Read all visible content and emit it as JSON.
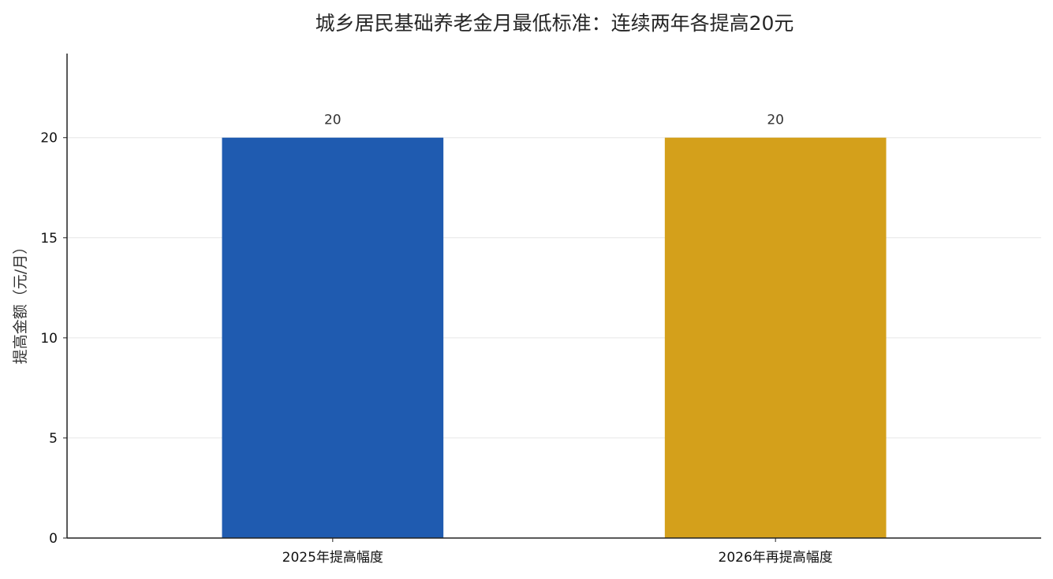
{
  "chart_data": {
    "type": "bar",
    "title": "城乡居民基础养老金月最低标准：连续两年各提高20元",
    "xlabel": "",
    "ylabel": "提高金额（元/月）",
    "categories": [
      "2025年提高幅度",
      "2026年再提高幅度"
    ],
    "values": [
      20,
      20
    ],
    "data_labels": [
      "20",
      "20"
    ],
    "bar_colors": [
      "#1f5bb0",
      "#d4a01b"
    ],
    "ylim": [
      0,
      24.2
    ],
    "yticks": [
      0,
      5,
      10,
      15,
      20
    ],
    "grid": true,
    "legend": "none"
  }
}
